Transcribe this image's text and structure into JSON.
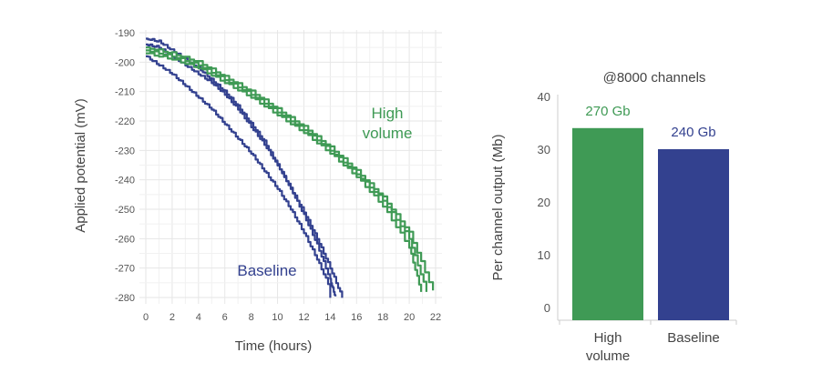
{
  "chart_data": [
    {
      "type": "line",
      "xlabel": "Time (hours)",
      "ylabel": "Applied potential (mV)",
      "xlim": [
        0,
        22
      ],
      "ylim": [
        -282,
        -190
      ],
      "xticks": [
        0,
        2,
        4,
        6,
        8,
        10,
        12,
        14,
        16,
        18,
        20,
        22
      ],
      "yticks": [
        -190,
        -200,
        -210,
        -220,
        -230,
        -240,
        -250,
        -260,
        -270,
        -280
      ],
      "grid": true,
      "colors": {
        "Baseline": "#33418f",
        "High volume": "#3f9a55"
      },
      "annotations": [
        {
          "text": "High",
          "color": "#3f9a55"
        },
        {
          "text": "volume",
          "color": "#3f9a55"
        },
        {
          "text": "Baseline",
          "color": "#33418f"
        }
      ],
      "series": [
        {
          "group": "Baseline",
          "x": [
            0,
            1,
            2,
            3,
            4,
            5,
            6,
            7,
            8,
            9,
            10,
            11,
            12,
            13,
            14,
            14.4
          ],
          "y": [
            -192,
            -193,
            -196,
            -199,
            -202,
            -206,
            -210,
            -215,
            -221,
            -227,
            -235,
            -243,
            -252,
            -262,
            -274,
            -280
          ]
        },
        {
          "group": "Baseline",
          "x": [
            0,
            1,
            2,
            3,
            4,
            5,
            6,
            7,
            8,
            9,
            10,
            11,
            12,
            13,
            14,
            14.9
          ],
          "y": [
            -194,
            -195,
            -198,
            -201,
            -204,
            -207,
            -211,
            -216,
            -222,
            -228,
            -235,
            -243,
            -251,
            -260,
            -270,
            -280
          ]
        },
        {
          "group": "Baseline",
          "x": [
            0,
            1,
            2,
            3,
            4,
            5,
            6,
            7,
            8,
            9,
            10,
            11,
            12,
            13,
            14,
            14.0
          ],
          "y": [
            -198,
            -201,
            -204,
            -208,
            -212,
            -216,
            -221,
            -226,
            -231,
            -237,
            -243,
            -250,
            -258,
            -267,
            -277,
            -280
          ]
        },
        {
          "group": "High volume",
          "x": [
            0,
            2,
            4,
            6,
            8,
            10,
            12,
            14,
            16,
            18,
            20,
            21.8
          ],
          "y": [
            -195,
            -197,
            -200,
            -205,
            -210,
            -216,
            -222,
            -229,
            -237,
            -246,
            -258,
            -278
          ]
        },
        {
          "group": "High volume",
          "x": [
            0,
            2,
            4,
            6,
            8,
            10,
            12,
            14,
            16,
            18,
            20,
            21.3
          ],
          "y": [
            -196,
            -198,
            -201,
            -206,
            -211,
            -217,
            -223,
            -230,
            -238,
            -247,
            -260,
            -278
          ]
        },
        {
          "group": "High volume",
          "x": [
            0,
            2,
            4,
            6,
            8,
            10,
            12,
            14,
            16,
            18,
            20,
            20.9
          ],
          "y": [
            -197,
            -199,
            -202,
            -207,
            -212,
            -218,
            -224,
            -231,
            -239,
            -249,
            -263,
            -278
          ]
        }
      ]
    },
    {
      "type": "bar",
      "title": "@8000 channels",
      "ylabel": "Per channel output (Mb)",
      "ylim": [
        0,
        44
      ],
      "yticks": [
        0,
        10,
        20,
        30,
        40
      ],
      "categories": [
        "High volume",
        "Baseline"
      ],
      "category_lines": [
        [
          "High",
          "volume"
        ],
        [
          "Baseline"
        ]
      ],
      "values": [
        34,
        30
      ],
      "data_labels": [
        "270 Gb",
        "240 Gb"
      ],
      "colors": [
        "#3f9a55",
        "#33418f"
      ]
    }
  ]
}
